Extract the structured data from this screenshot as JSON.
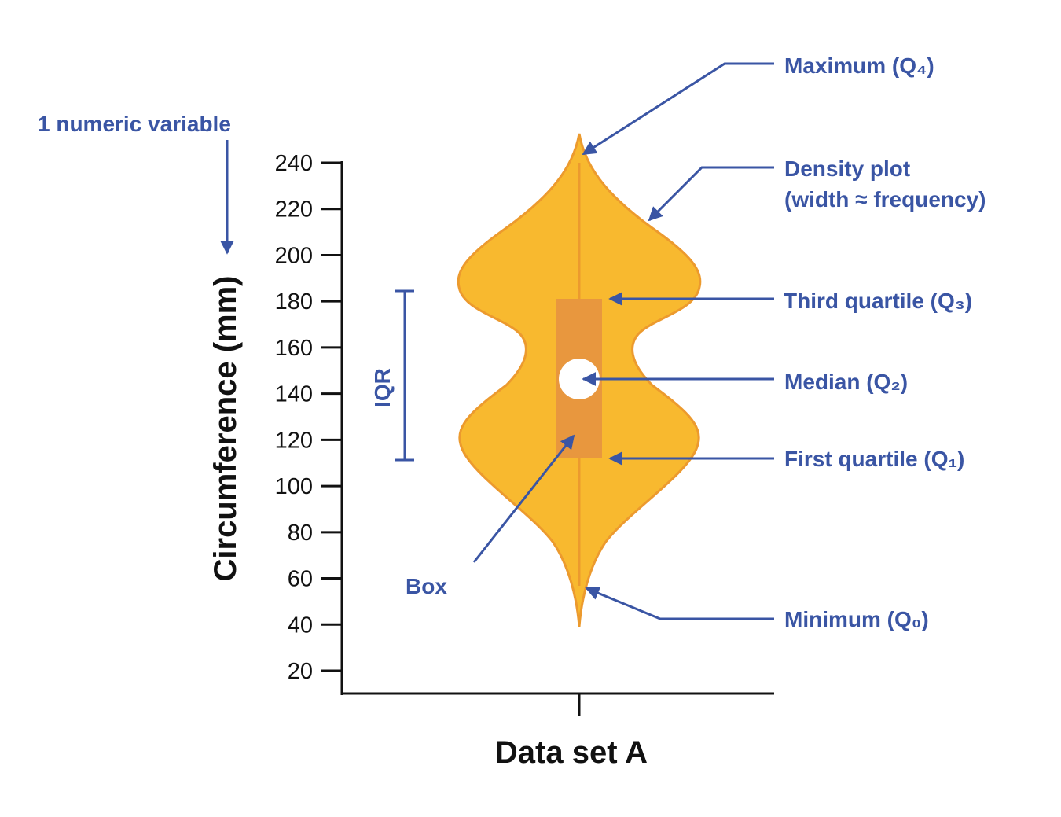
{
  "colors": {
    "violin_fill": "#f8b92f",
    "violin_stroke": "#ec9a2e",
    "box_fill": "#e8973e",
    "annotation": "#3a55a4",
    "axis": "#111111"
  },
  "y_axis": {
    "label": "Circumference (mm)",
    "ticks": [
      20,
      40,
      60,
      80,
      100,
      120,
      140,
      160,
      180,
      200,
      220,
      240
    ]
  },
  "x_axis": {
    "label": "Data set A"
  },
  "summary": {
    "maximum": 240,
    "q3": 180,
    "median": 145,
    "q1": 111,
    "minimum": 57
  },
  "annotations": {
    "variable": "1 numeric variable",
    "iqr": "IQR",
    "box": "Box",
    "maximum": "Maximum (Q₄)",
    "density_line1": "Density plot",
    "density_line2": "(width ≈ frequency)",
    "q3": "Third quartile (Q₃)",
    "median": "Median (Q₂)",
    "q1": "First quartile (Q₁)",
    "minimum": "Minimum (Q₀)"
  }
}
